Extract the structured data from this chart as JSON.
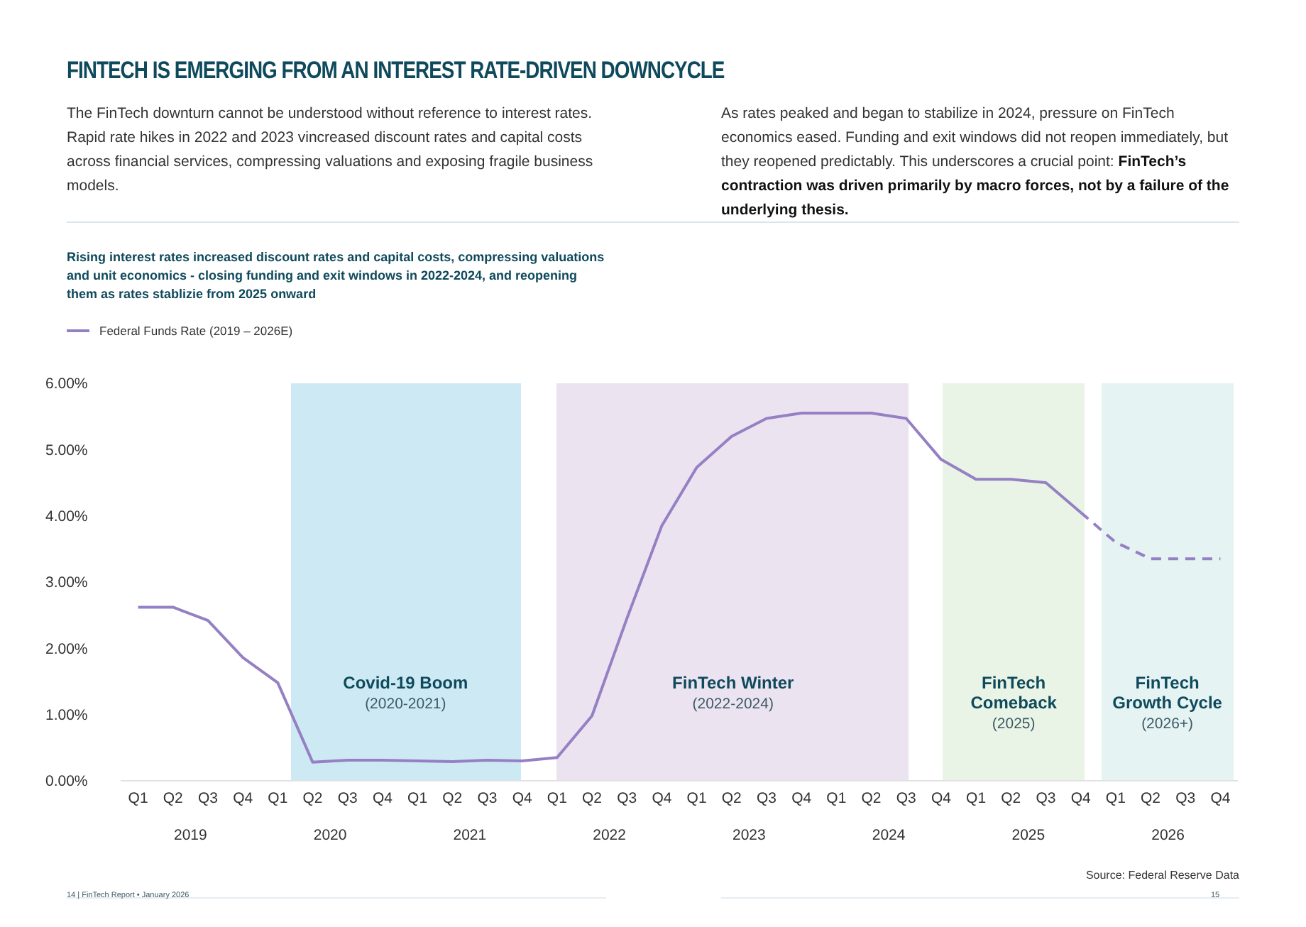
{
  "chart_data": {
    "type": "line",
    "title": "FINTECH IS EMERGING FROM AN INTEREST RATE-DRIVEN DOWNCYCLE",
    "subtitle": "Rising interest rates increased discount rates and capital costs, compressing valuations and unit economics - closing funding and exit windows in 2022-2024, and reopening them as rates stablizie from 2025 onward",
    "annotations": [
      "The FinTech downturn cannot be understood without reference to interest rates. Rapid rate hikes in 2022 and 2023 vincreased discount rates and capital costs across financial services, compressing valuations and exposing fragile business models.",
      "As rates peaked and began to stabilize in 2024, pressure on FinTech economics eased. Funding and exit windows did not reopen immediately, but they reopened predictably. This underscores a crucial point:",
      "FinTech’s contraction was driven primarily by macro forces, not by a failure of the underlying thesis.",
      "Source: Federal Reserve Data",
      "14 | FinTech Report • January 2026",
      "15",
      "2019",
      "2020",
      "2021",
      "2022",
      "2023",
      "2024",
      "2025",
      "2026",
      "Covid-19 Boom\n(2020-2021)",
      "FinTech Winter\n(2022-2024)",
      "FinTech\nComeback\n(2025)",
      "FinTech\nGrowth Cycle\n(2026+)"
    ],
    "categories": [
      "Q1",
      "Q2",
      "Q3",
      "Q4",
      "Q1",
      "Q2",
      "Q3",
      "Q4",
      "Q1",
      "Q2",
      "Q3",
      "Q4",
      "Q1",
      "Q2",
      "Q3",
      "Q4",
      "Q1",
      "Q2",
      "Q3",
      "Q4",
      "Q1",
      "Q2",
      "Q3",
      "Q4",
      "Q1",
      "Q2",
      "Q3",
      "Q4",
      "Q1",
      "Q2",
      "Q3",
      "Q4"
    ],
    "series": [
      {
        "name": "Federal Funds Rate (2019 – 2026E)",
        "color": "#9580c4",
        "line_style": "solid",
        "values": [
          2.62,
          2.62,
          2.42,
          1.86,
          1.48,
          0.28,
          0.31,
          0.31,
          0.3,
          0.29,
          0.31,
          0.3,
          0.35,
          0.98,
          2.45,
          3.85,
          4.73,
          5.2,
          5.47,
          5.55,
          5.55,
          5.55,
          5.47,
          4.85,
          4.55,
          4.55,
          4.5,
          4.05,
          null,
          null,
          null,
          null
        ]
      },
      {
        "color": "#9580c4",
        "line_style": "dashed",
        "values": [
          null,
          null,
          null,
          null,
          null,
          null,
          null,
          null,
          null,
          null,
          null,
          null,
          null,
          null,
          null,
          null,
          null,
          null,
          null,
          null,
          null,
          null,
          null,
          null,
          null,
          null,
          null,
          4.05,
          3.6,
          3.35,
          3.35,
          3.35
        ]
      }
    ],
    "ylim": [
      0,
      6
    ],
    "yticks": [
      {
        "value": 0,
        "label": "0.00%"
      },
      {
        "value": 1,
        "label": "1.00%"
      },
      {
        "value": 2,
        "label": "2.00%"
      },
      {
        "value": 3,
        "label": "3.00%"
      },
      {
        "value": 4,
        "label": "4.00%"
      },
      {
        "value": 5,
        "label": "5.00%"
      },
      {
        "value": 6,
        "label": "6.00%"
      }
    ],
    "legend": "top left"
  }
}
